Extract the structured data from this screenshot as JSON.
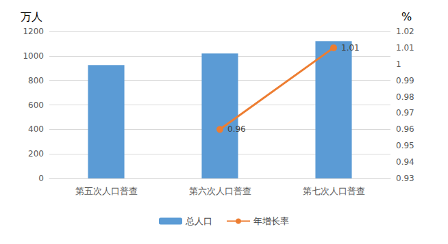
{
  "chart_data": {
    "type": "bar",
    "ylabel": "万人",
    "y2label": "%",
    "categories": [
      "第五次人口普查",
      "第六次人口普查",
      "第七次人口普查"
    ],
    "series": [
      {
        "name": "总人口",
        "type": "bar",
        "color": "#5b9bd5",
        "values": [
          925,
          1020,
          1120
        ]
      },
      {
        "name": "年增长率",
        "type": "line",
        "axis": "y2",
        "color": "#ed7d31",
        "marker": "circle",
        "line_style": "solid",
        "data_labels": true,
        "values": [
          null,
          0.96,
          1.01
        ]
      }
    ],
    "ylim": [
      0,
      1200
    ],
    "yticks": [
      0,
      200,
      400,
      600,
      800,
      1000,
      1200
    ],
    "y2lim": [
      0.93,
      1.02
    ],
    "y2ticks": [
      0.93,
      0.94,
      0.95,
      0.96,
      0.97,
      0.98,
      0.99,
      1,
      1.01,
      1.02
    ],
    "grid": true,
    "legend": "bottom"
  }
}
